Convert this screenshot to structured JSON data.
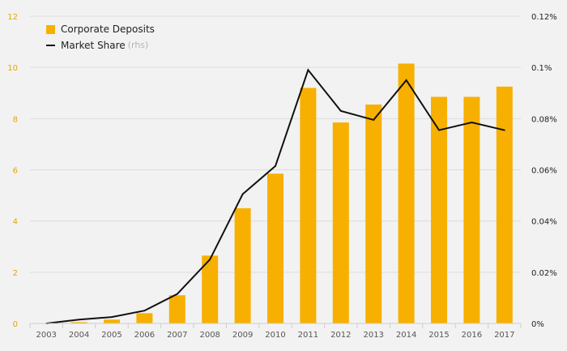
{
  "chart_data": {
    "type": "bar+line",
    "categories": [
      "2003",
      "2004",
      "2005",
      "2006",
      "2007",
      "2008",
      "2009",
      "2010",
      "2011",
      "2012",
      "2013",
      "2014",
      "2015",
      "2016",
      "2017"
    ],
    "series": [
      {
        "name": "Corporate Deposits",
        "type": "bar",
        "axis": "left",
        "color": "#f7b000",
        "values": [
          0.0,
          0.05,
          0.15,
          0.4,
          1.1,
          2.65,
          4.5,
          5.85,
          9.2,
          7.85,
          8.55,
          10.15,
          8.85,
          8.85,
          9.25
        ]
      },
      {
        "name": "Market Share",
        "type": "line",
        "axis": "right",
        "color": "#111111",
        "values": [
          0.0,
          0.0015,
          0.0025,
          0.005,
          0.0115,
          0.025,
          0.0505,
          0.0615,
          0.099,
          0.083,
          0.0795,
          0.095,
          0.0755,
          0.0785,
          0.0755
        ]
      }
    ],
    "y_left": {
      "ylim": [
        0,
        12
      ],
      "ticks": [
        "0",
        "2",
        "4",
        "6",
        "8",
        "10",
        "12"
      ]
    },
    "y_right": {
      "ylim": [
        0,
        0.12
      ],
      "ticks": [
        "0%",
        "0.02%",
        "0.04%",
        "0.06%",
        "0.08%",
        "0.1%",
        "0.12%"
      ]
    },
    "legend": {
      "placement": "top-left",
      "entries": [
        {
          "label": "Corporate Deposits",
          "note": ""
        },
        {
          "label": "Market Share",
          "note": "(rhs)"
        }
      ]
    },
    "grid": true,
    "title": "",
    "xlabel": "",
    "ylabel": ""
  }
}
